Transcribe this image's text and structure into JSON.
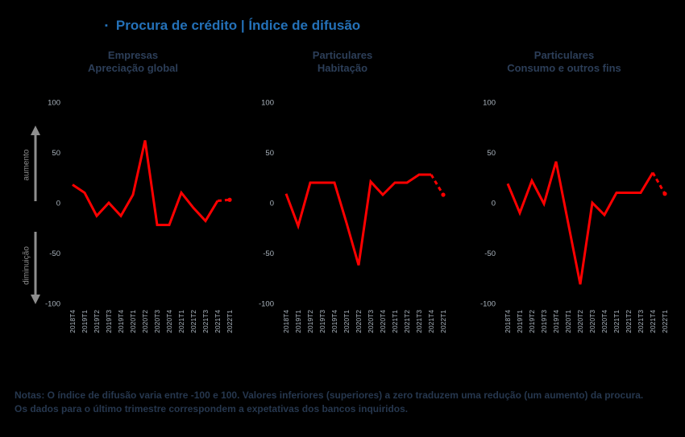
{
  "title": {
    "bullet": "▪",
    "text": "Procura de crédito | Índice de difusão"
  },
  "axis_annotations": {
    "increase": "aumento",
    "decrease": "diminuição"
  },
  "notes": {
    "line1": "Notas: O índice de difusão varia entre -100 e 100. Valores inferiores (superiores) a zero traduzem uma redução (um aumento) da procura.",
    "line2": "Os dados para o último trimestre correspondem a expetativas dos bancos inquiridos."
  },
  "colors": {
    "background": "#000000",
    "line": "#ff0000",
    "title_blue": "#2471b8",
    "panel_title": "#2c3e58",
    "tick": "#aab4be",
    "arrow": "#8f8f8f",
    "note": "#26374e"
  },
  "chart_data": [
    {
      "type": "line",
      "title_line1": "Empresas",
      "title_line2": "Apreciação global",
      "categories": [
        "2018T4",
        "2019T1",
        "2019T2",
        "2019T3",
        "2019T4",
        "2020T1",
        "2020T2",
        "2020T3",
        "2020T4",
        "2021T1",
        "2021T2",
        "2021T3",
        "2021T4",
        "2022T1"
      ],
      "values": [
        18,
        10,
        -13,
        0,
        -13,
        8,
        62,
        -22,
        -22,
        10,
        -5,
        -18,
        2,
        3
      ],
      "ylim": [
        -100,
        100
      ],
      "yticks": [
        "100",
        "50",
        "0",
        "-50",
        "-100"
      ],
      "ytick_values": [
        100,
        50,
        0,
        -50,
        -100
      ],
      "grid": false,
      "last_point_is_expectation": true
    },
    {
      "type": "line",
      "title_line1": "Particulares",
      "title_line2": "Habitação",
      "categories": [
        "2018T4",
        "2019T1",
        "2019T2",
        "2019T3",
        "2019T4",
        "2020T1",
        "2020T2",
        "2020T3",
        "2020T4",
        "2021T1",
        "2021T2",
        "2021T3",
        "2021T4",
        "2022T1"
      ],
      "values": [
        9,
        -23,
        20,
        20,
        20,
        -20,
        -62,
        21,
        8,
        20,
        20,
        28,
        28,
        8
      ],
      "ylim": [
        -100,
        100
      ],
      "yticks": [
        "100",
        "50",
        "0",
        "-50",
        "-100"
      ],
      "ytick_values": [
        100,
        50,
        0,
        -50,
        -100
      ],
      "grid": false,
      "last_point_is_expectation": true
    },
    {
      "type": "line",
      "title_line1": "Particulares",
      "title_line2": "Consumo e outros fins",
      "categories": [
        "2018T4",
        "2019T1",
        "2019T2",
        "2019T3",
        "2019T4",
        "2020T1",
        "2020T2",
        "2020T3",
        "2020T4",
        "2021T1",
        "2021T2",
        "2021T3",
        "2021T4",
        "2022T1"
      ],
      "values": [
        19,
        -10,
        22,
        -1,
        41,
        -20,
        -81,
        0,
        -12,
        10,
        10,
        10,
        30,
        9
      ],
      "ylim": [
        -100,
        100
      ],
      "yticks": [
        "100",
        "50",
        "0",
        "-50",
        "-100"
      ],
      "ytick_values": [
        100,
        50,
        0,
        -50,
        -100
      ],
      "grid": false,
      "last_point_is_expectation": true
    }
  ]
}
